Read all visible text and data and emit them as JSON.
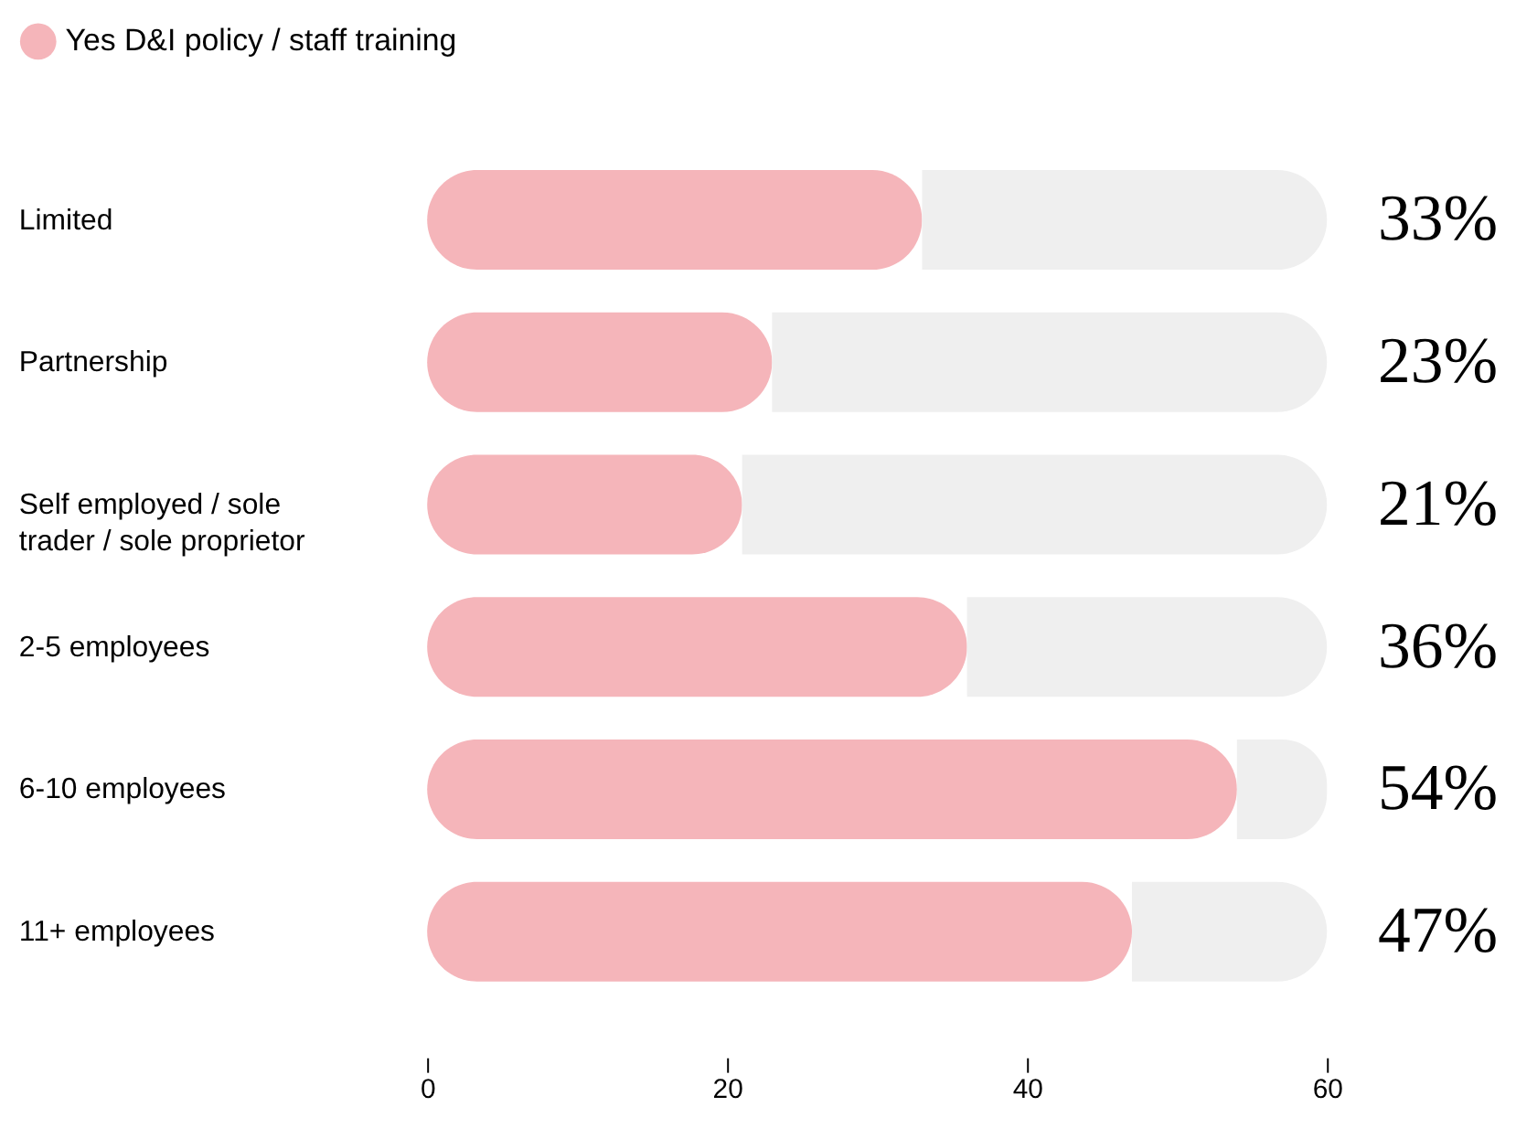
{
  "chart_data": {
    "type": "bar",
    "orientation": "horizontal",
    "stacked": true,
    "categories": [
      "Limited",
      "Partnership",
      "Self employed / sole trader / sole proprietor",
      "2-5 employees",
      "6-10 employees",
      "11+ employees"
    ],
    "series": [
      {
        "name": "Yes D&I policy / staff training",
        "color": "#f5b5ba",
        "values": [
          33,
          23,
          21,
          36,
          54,
          47
        ],
        "value_labels": [
          "33%",
          "23%",
          "21%",
          "36%",
          "54%",
          "47%"
        ]
      },
      {
        "color": "#efefef",
        "values": [
          27,
          37,
          39,
          24,
          6,
          13
        ]
      }
    ],
    "xlim": [
      0,
      60
    ],
    "xticks": [
      0,
      20,
      40,
      60
    ],
    "grid": false,
    "legend": "top left"
  }
}
